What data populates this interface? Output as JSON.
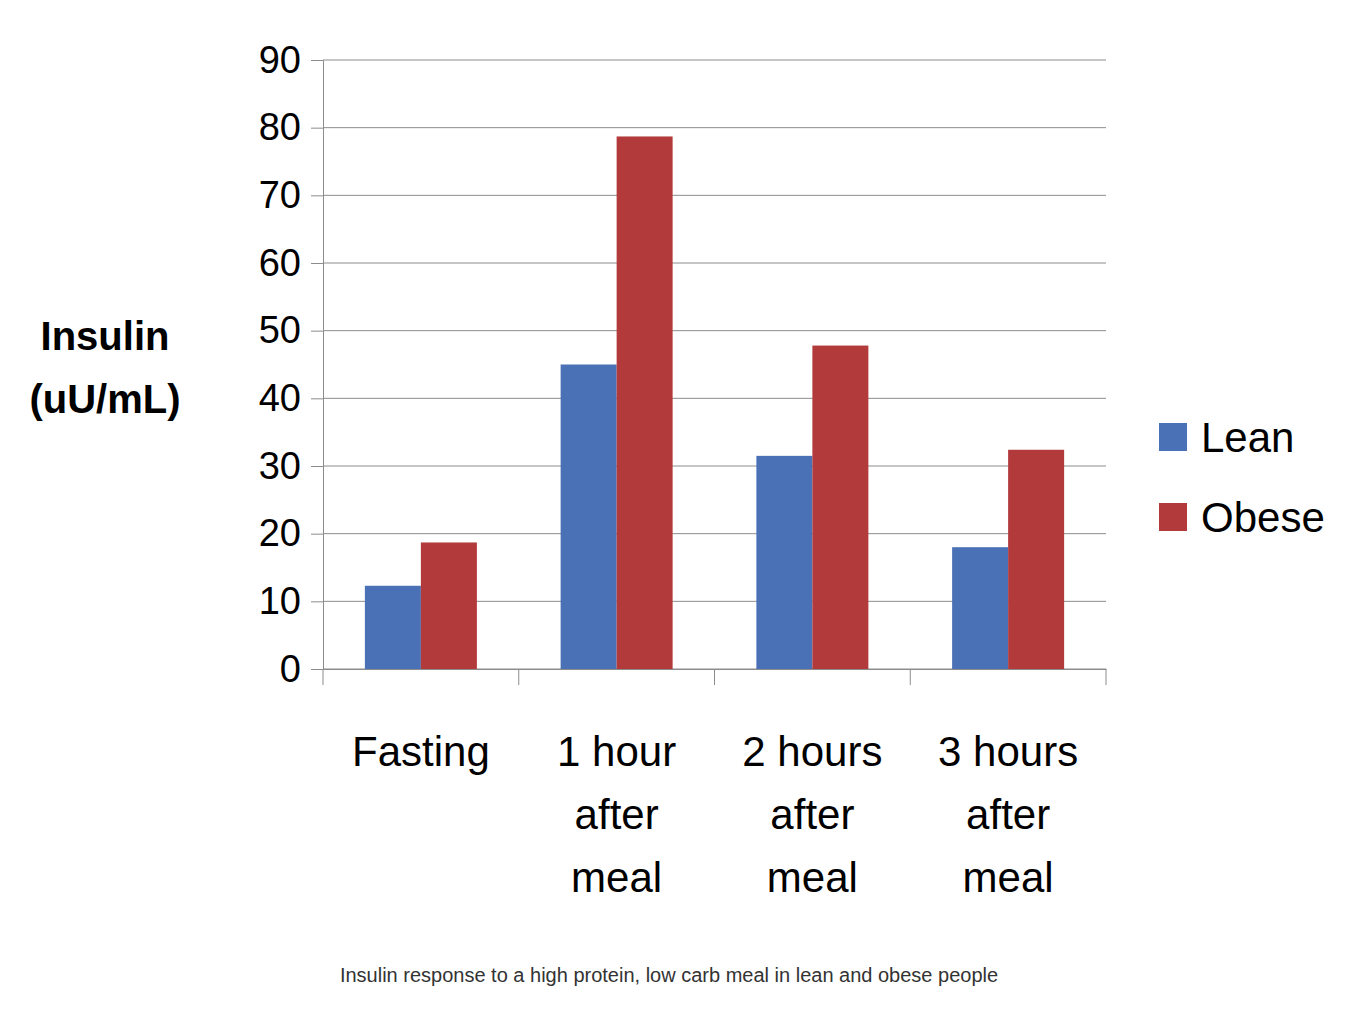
{
  "chart_data": {
    "type": "bar",
    "title": "Insulin response to a high protein, low carb meal in lean and obese people",
    "y_label": "Insulin (uU/mL)",
    "categories": [
      "Fasting",
      "1 hour after meal",
      "2 hours after meal",
      "3 hours after meal"
    ],
    "series": [
      {
        "name": "Lean",
        "color": "#4a70b6",
        "values": [
          12.3,
          45,
          31.5,
          18
        ]
      },
      {
        "name": "Obese",
        "color": "#b23a3b",
        "values": [
          18.7,
          78.7,
          47.8,
          32.4
        ]
      }
    ],
    "ylim": [
      0,
      90
    ],
    "yticks": [
      0,
      10,
      20,
      30,
      40,
      50,
      60,
      70,
      80,
      90
    ],
    "grid": true,
    "legend": "right"
  }
}
